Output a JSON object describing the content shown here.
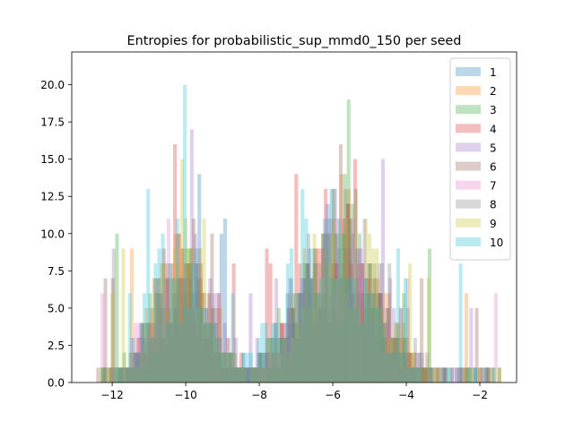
{
  "chart_data": {
    "type": "histogram",
    "title": "Entropies for probabilistic_sup_mmd0_150 per seed",
    "xlabel": "",
    "ylabel": "",
    "xlim": [
      -13.1,
      -1.0
    ],
    "ylim": [
      0,
      22.2
    ],
    "x_ticks": [
      -12,
      -10,
      -8,
      -6,
      -4,
      -2
    ],
    "y_ticks": [
      0.0,
      2.5,
      5.0,
      7.5,
      10.0,
      12.5,
      15.0,
      17.5,
      20.0
    ],
    "bin_width": 0.1,
    "bar_opacity": 0.3,
    "legend_position": "upper right",
    "series": [
      {
        "name": "1",
        "color": "#1f77b4",
        "seed": 1,
        "peak_offset": 0.0,
        "peak_height": 14
      },
      {
        "name": "2",
        "color": "#ff7f0e",
        "seed": 2,
        "peak_offset": 0.15,
        "peak_height": 15
      },
      {
        "name": "3",
        "color": "#2ca02c",
        "seed": 3,
        "peak_offset": -0.1,
        "peak_height": 14
      },
      {
        "name": "4",
        "color": "#d62728",
        "seed": 4,
        "peak_offset": 0.05,
        "peak_height": 14
      },
      {
        "name": "5",
        "color": "#9467bd",
        "seed": 5,
        "peak_offset": 0.35,
        "peak_height": 15
      },
      {
        "name": "6",
        "color": "#8c564b",
        "seed": 6,
        "peak_offset": 0.1,
        "peak_height": 13
      },
      {
        "name": "7",
        "color": "#e377c2",
        "seed": 7,
        "peak_offset": -0.2,
        "peak_height": 15
      },
      {
        "name": "8",
        "color": "#7f7f7f",
        "seed": 8,
        "peak_offset": 0.5,
        "peak_height": 14
      },
      {
        "name": "9",
        "color": "#bcbd22",
        "seed": 9,
        "peak_offset": 0.2,
        "peak_height": 15
      },
      {
        "name": "10",
        "color": "#17becf",
        "seed": 10,
        "peak_offset": -0.3,
        "peak_height": 16
      }
    ],
    "distribution": {
      "modes": [
        {
          "center": -10.2,
          "sd": 0.75,
          "weight": 1.0
        },
        {
          "center": -6.0,
          "sd": 1.05,
          "weight": 1.25
        }
      ],
      "range": [
        -12.6,
        -1.5
      ]
    }
  }
}
